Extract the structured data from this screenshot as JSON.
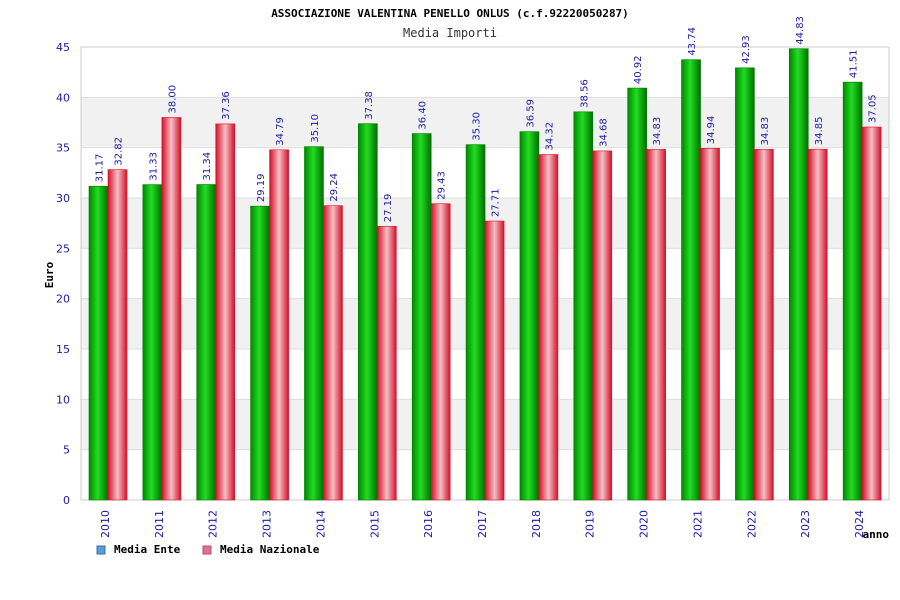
{
  "chart_data": {
    "type": "bar",
    "title": "ASSOCIAZIONE VALENTINA PENELLO ONLUS (c.f.92220050287)",
    "subtitle": "Media Importi",
    "xlabel": "anno",
    "ylabel": "Euro",
    "ylim": [
      0,
      45
    ],
    "yticks": [
      0,
      5,
      10,
      15,
      20,
      25,
      30,
      35,
      40,
      45
    ],
    "categories": [
      "2010",
      "2011",
      "2012",
      "2013",
      "2014",
      "2015",
      "2016",
      "2017",
      "2018",
      "2019",
      "2020",
      "2021",
      "2022",
      "2023",
      "2024"
    ],
    "series": [
      {
        "name": "Media Ente",
        "values": [
          31.17,
          31.33,
          31.34,
          29.19,
          35.1,
          37.38,
          36.4,
          35.3,
          36.59,
          38.56,
          40.92,
          43.74,
          42.93,
          44.83,
          41.51
        ],
        "labels": [
          "31.17",
          "31.33",
          "31.34",
          "29.19",
          "35.10",
          "37.38",
          "36.40",
          "35.30",
          "36.59",
          "38.56",
          "40.92",
          "43.74",
          "42.93",
          "44.83",
          "41.51"
        ]
      },
      {
        "name": "Media Nazionale",
        "values": [
          32.82,
          38.0,
          37.36,
          34.79,
          29.24,
          27.19,
          29.43,
          27.71,
          34.32,
          34.68,
          34.83,
          34.94,
          34.83,
          34.85,
          37.05
        ],
        "labels": [
          "32.82",
          "38.00",
          "37.36",
          "34.79",
          "29.24",
          "27.19",
          "29.43",
          "27.71",
          "34.32",
          "34.68",
          "34.83",
          "34.94",
          "34.83",
          "34.85",
          "37.05"
        ]
      }
    ],
    "legend": "bottom-left",
    "grid": true
  },
  "colors": {
    "ente_dark": "#007a00",
    "ente_light": "#33ee33",
    "nazionale_dark": "#d8112a",
    "nazionale_light": "#f7c3c8",
    "legend_ente": "#5b9bd5",
    "legend_nazionale": "#e0709a",
    "band": "#f1f1f1",
    "axis_text": "#1a1aa6"
  }
}
